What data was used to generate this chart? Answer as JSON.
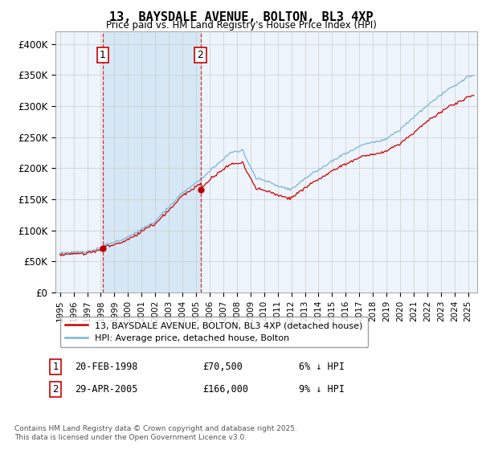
{
  "title": "13, BAYSDALE AVENUE, BOLTON, BL3 4XP",
  "subtitle": "Price paid vs. HM Land Registry's House Price Index (HPI)",
  "legend_entries": [
    "13, BAYSDALE AVENUE, BOLTON, BL3 4XP (detached house)",
    "HPI: Average price, detached house, Bolton"
  ],
  "sale1_date": "1998-02-20",
  "sale1_price": 70500,
  "sale1_label": "1",
  "sale1_note": "20-FEB-1998",
  "sale1_pct": "6% ↓ HPI",
  "sale2_date": "2005-04-29",
  "sale2_price": 166000,
  "sale2_label": "2",
  "sale2_note": "29-APR-2005",
  "sale2_pct": "9% ↓ HPI",
  "ylim": [
    0,
    420000
  ],
  "yticks": [
    0,
    50000,
    100000,
    150000,
    200000,
    250000,
    300000,
    350000,
    400000
  ],
  "ytick_labels": [
    "£0",
    "£50K",
    "£100K",
    "£150K",
    "£200K",
    "£250K",
    "£300K",
    "£350K",
    "£400K"
  ],
  "hpi_color": "#7ab4d8",
  "sale_color": "#cc0000",
  "shade_color": "#d6e8f5",
  "dashed_color": "#cc0000",
  "grid_color": "#cccccc",
  "background_color": "#eef4fb",
  "footer_text": "Contains HM Land Registry data © Crown copyright and database right 2025.\nThis data is licensed under the Open Government Licence v3.0."
}
